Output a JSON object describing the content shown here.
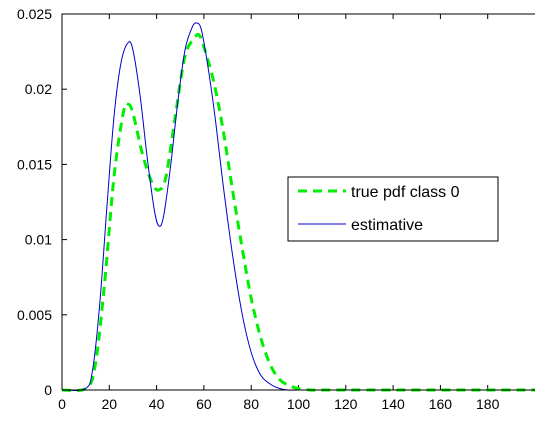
{
  "chart_data": {
    "type": "line",
    "title": "",
    "xlabel": "",
    "ylabel": "",
    "xlim": [
      0,
      200
    ],
    "ylim": [
      0,
      0.025
    ],
    "xticks": [
      0,
      20,
      40,
      60,
      80,
      100,
      120,
      140,
      160,
      180
    ],
    "xtick_labels": [
      "0",
      "20",
      "40",
      "60",
      "80",
      "100",
      "120",
      "140",
      "160",
      "180"
    ],
    "yticks": [
      0,
      0.005,
      0.01,
      0.015,
      0.02,
      0.025
    ],
    "ytick_labels": [
      "0",
      "0.005",
      "0.01",
      "0.015",
      "0.02",
      "0.025"
    ],
    "grid": false,
    "legend": {
      "placement": "right"
    },
    "series": [
      {
        "name": "true pdf class 0",
        "color": "#00ee00",
        "style": "dashed",
        "x": [
          0,
          10,
          14,
          18,
          22,
          26,
          28,
          30,
          34,
          38,
          41,
          44,
          48,
          52,
          56,
          58,
          60,
          64,
          68,
          72,
          76,
          80,
          84,
          88,
          92,
          96,
          100,
          105,
          110,
          120,
          140,
          160,
          180,
          200
        ],
        "y": [
          0,
          0.0001,
          0.0016,
          0.0071,
          0.0142,
          0.0185,
          0.019,
          0.0184,
          0.0157,
          0.0138,
          0.0133,
          0.0142,
          0.0183,
          0.0222,
          0.0234,
          0.0236,
          0.0228,
          0.0206,
          0.0174,
          0.0134,
          0.0096,
          0.0061,
          0.0035,
          0.0017,
          0.0007,
          0.0003,
          0.0001,
          0,
          0,
          0,
          0,
          0,
          0,
          0
        ]
      },
      {
        "name": "estimative",
        "color": "#0000cc",
        "style": "solid",
        "x": [
          0,
          10,
          13,
          16,
          19,
          22,
          25,
          28,
          30,
          33,
          36,
          39,
          41,
          43,
          46,
          49,
          52,
          55,
          57,
          59,
          62,
          65,
          68,
          72,
          76,
          80,
          84,
          88,
          92,
          96,
          100,
          110,
          120,
          140,
          160,
          180,
          200
        ],
        "y": [
          0,
          0.0001,
          0.0014,
          0.0058,
          0.0122,
          0.0182,
          0.0218,
          0.0231,
          0.0226,
          0.0196,
          0.0155,
          0.012,
          0.0109,
          0.0116,
          0.015,
          0.0192,
          0.0226,
          0.0241,
          0.0244,
          0.0239,
          0.0212,
          0.0178,
          0.0138,
          0.0091,
          0.0052,
          0.0025,
          0.001,
          0.0004,
          0.0001,
          0,
          0,
          0,
          0,
          0,
          0,
          0,
          0
        ]
      }
    ]
  }
}
